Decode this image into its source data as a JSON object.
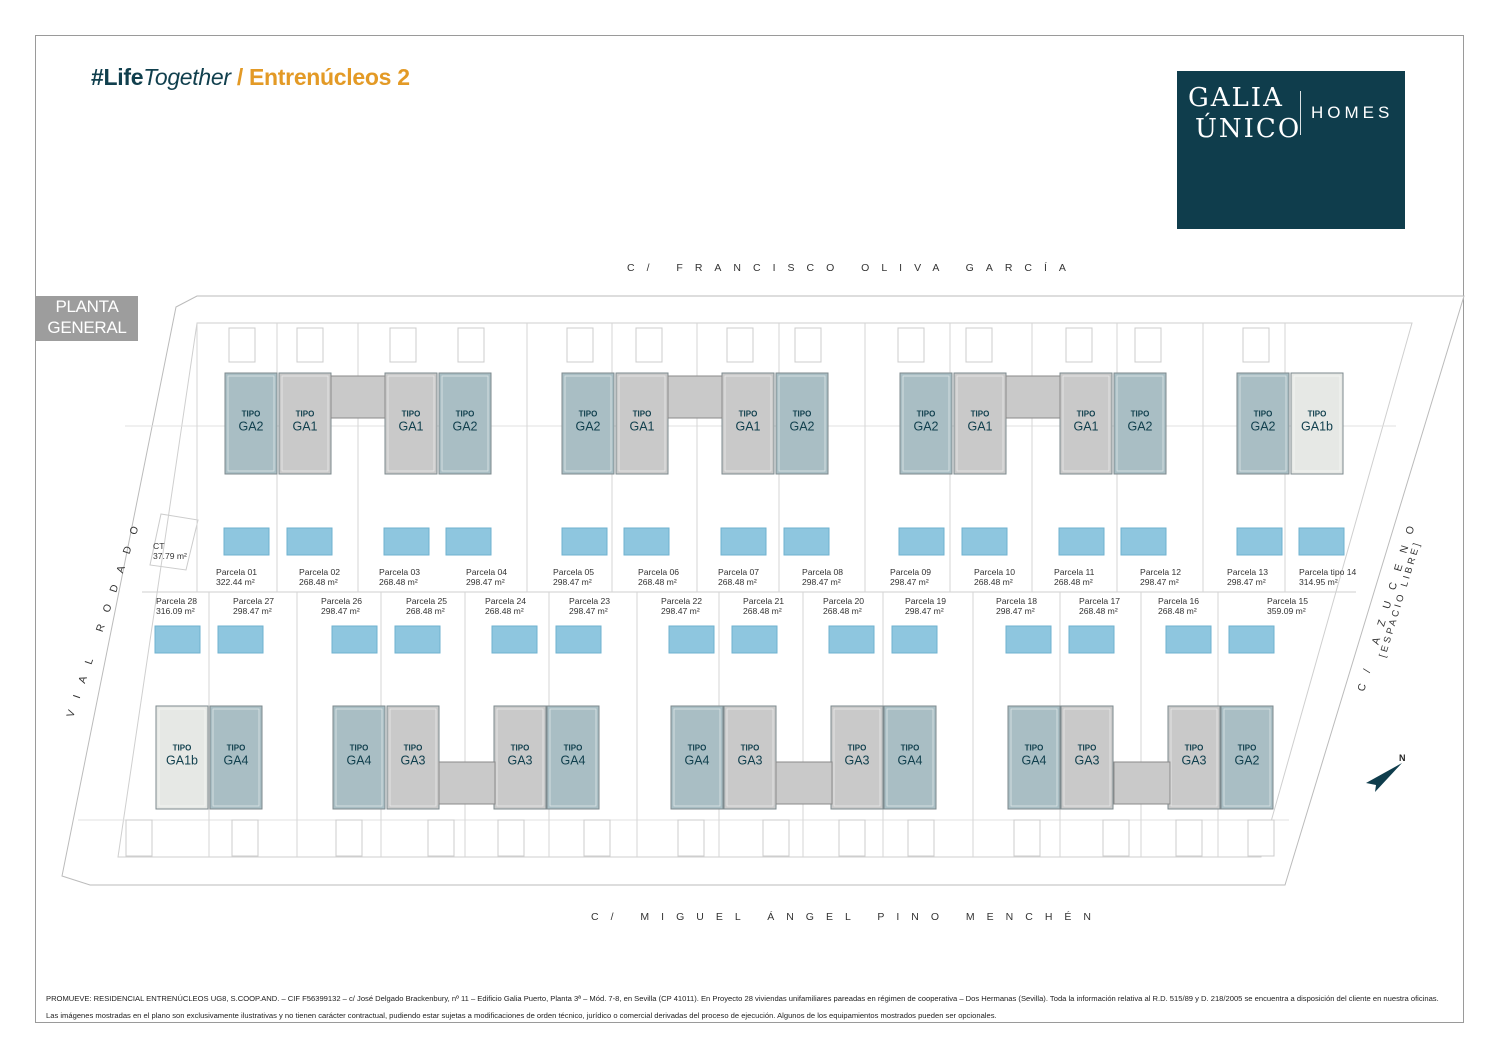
{
  "brand": {
    "hashtag": "#Life",
    "hashtag_italic": "Together",
    "slash": " / ",
    "project": "Entrenúcleos 2"
  },
  "logo": {
    "line1": "GALIA",
    "line2": "ÚNICO",
    "line3": "HOMES"
  },
  "streets": {
    "top": "C/ FRANCISCO OLIVA GARCÍA",
    "bottom": "C/ MIGUEL ÁNGEL PINO MENCHÉN",
    "left": "VIAL RODADO",
    "right": "C/ AZUCENO",
    "right_sub": "[ESPACIO LIBRE]"
  },
  "planta": {
    "line1": "PLANTA",
    "line2": "GENERAL"
  },
  "ct": {
    "name": "CT",
    "area": "37.79 m²"
  },
  "compass": "N",
  "unit_type_prefix": "TIPO",
  "colors": {
    "blue_unit": "#a9bec4",
    "grey_unit": "#c9c9c9",
    "light_unit": "#e6e8e5",
    "pool": "#8ec6df",
    "brand_dark": "#0f3d4c",
    "brand_orange": "#e39a26"
  },
  "top_units": [
    {
      "type": "GA2",
      "tone": "blue"
    },
    {
      "type": "GA1",
      "tone": "grey"
    },
    {
      "type": "GA1",
      "tone": "grey"
    },
    {
      "type": "GA2",
      "tone": "blue"
    },
    {
      "type": "GA2",
      "tone": "blue"
    },
    {
      "type": "GA1",
      "tone": "grey"
    },
    {
      "type": "GA1",
      "tone": "grey"
    },
    {
      "type": "GA2",
      "tone": "blue"
    },
    {
      "type": "GA2",
      "tone": "blue"
    },
    {
      "type": "GA1",
      "tone": "grey"
    },
    {
      "type": "GA1",
      "tone": "grey"
    },
    {
      "type": "GA2",
      "tone": "blue"
    },
    {
      "type": "GA2",
      "tone": "blue"
    },
    {
      "type": "GA1b",
      "tone": "light"
    }
  ],
  "bottom_units": [
    {
      "type": "GA1b",
      "tone": "light"
    },
    {
      "type": "GA4",
      "tone": "blue"
    },
    {
      "type": "GA4",
      "tone": "blue"
    },
    {
      "type": "GA3",
      "tone": "grey"
    },
    {
      "type": "GA3",
      "tone": "grey"
    },
    {
      "type": "GA4",
      "tone": "blue"
    },
    {
      "type": "GA4",
      "tone": "blue"
    },
    {
      "type": "GA3",
      "tone": "grey"
    },
    {
      "type": "GA3",
      "tone": "grey"
    },
    {
      "type": "GA4",
      "tone": "blue"
    },
    {
      "type": "GA4",
      "tone": "blue"
    },
    {
      "type": "GA3",
      "tone": "grey"
    },
    {
      "type": "GA3",
      "tone": "grey"
    },
    {
      "type": "GA2",
      "tone": "blue"
    }
  ],
  "top_parcels": [
    {
      "name": "Parcela 01",
      "area": "322.44  m²"
    },
    {
      "name": "Parcela 02",
      "area": "268.48  m²"
    },
    {
      "name": "Parcela 03",
      "area": "268.48  m²"
    },
    {
      "name": "Parcela 04",
      "area": "298.47  m²"
    },
    {
      "name": "Parcela 05",
      "area": "298.47  m²"
    },
    {
      "name": "Parcela 06",
      "area": "268.48  m²"
    },
    {
      "name": "Parcela 07",
      "area": "268.48  m²"
    },
    {
      "name": "Parcela 08",
      "area": "298.47  m²"
    },
    {
      "name": "Parcela 09",
      "area": "298.47  m²"
    },
    {
      "name": "Parcela 10",
      "area": "268.48  m²"
    },
    {
      "name": "Parcela 11",
      "area": "268.48  m²"
    },
    {
      "name": "Parcela 12",
      "area": "298.47  m²"
    },
    {
      "name": "Parcela 13",
      "area": "298.47  m²"
    },
    {
      "name": "Parcela tipo 14",
      "area": "314.95  m²"
    }
  ],
  "bottom_parcels": [
    {
      "name": "Parcela 28",
      "area": "316.09  m²"
    },
    {
      "name": "Parcela 27",
      "area": "298.47  m²"
    },
    {
      "name": "Parcela 26",
      "area": "298.47  m²"
    },
    {
      "name": "Parcela 25",
      "area": "268.48  m²"
    },
    {
      "name": "Parcela 24",
      "area": "268.48  m²"
    },
    {
      "name": "Parcela 23",
      "area": "298.47  m²"
    },
    {
      "name": "Parcela 22",
      "area": "298.47  m²"
    },
    {
      "name": "Parcela 21",
      "area": "268.48  m²"
    },
    {
      "name": "Parcela 20",
      "area": "268.48  m²"
    },
    {
      "name": "Parcela 19",
      "area": "298.47  m²"
    },
    {
      "name": "Parcela 18",
      "area": "298.47  m²"
    },
    {
      "name": "Parcela 17",
      "area": "268.48  m²"
    },
    {
      "name": "Parcela 16",
      "area": "268.48  m²"
    },
    {
      "name": "Parcela 15",
      "area": "359.09  m²"
    }
  ],
  "footer": "PROMUEVE: RESIDENCIAL ENTRENÚCLEOS UG8, S.COOP.AND. – CIF F56399132 – c/ José Delgado Brackenbury, nº 11 – Edificio Galia Puerto, Planta 3ª – Mód. 7-8, en Sevilla (CP 41011).  En Proyecto 28 viviendas unifamiliares pareadas en régimen de cooperativa – Dos Hermanas (Sevilla). Toda la información relativa al R.D. 515/89 y D. 218/2005 se encuentra a disposición del cliente en nuestra oficinas. Las imágenes mostradas en el plano son exclusivamente ilustrativas y no tienen carácter contractual, pudiendo estar sujetas a modificaciones de orden técnico, jurídico o comercial derivadas del proceso de ejecución. Algunos de los equipamientos mostrados pueden ser opcionales."
}
